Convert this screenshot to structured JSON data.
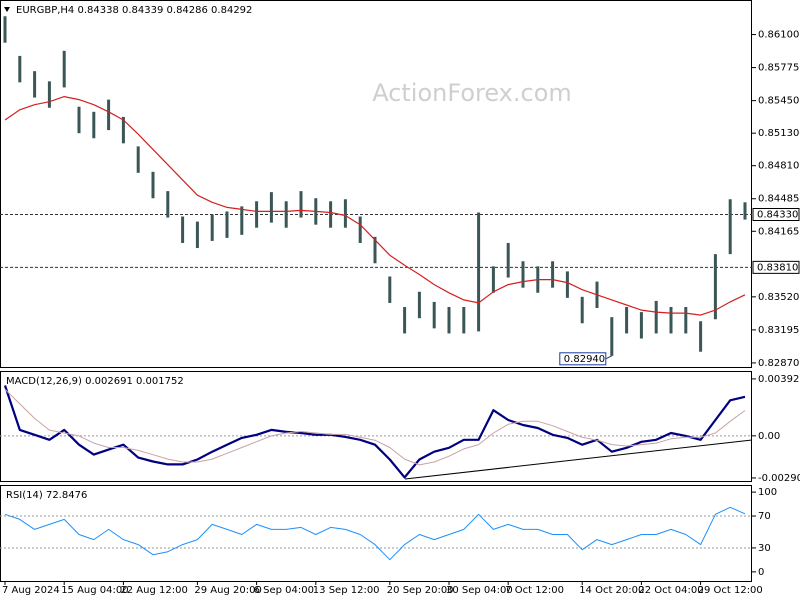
{
  "chart_data": [
    {
      "type": "range_bars",
      "title": "EURGBP,H4  0.84338 0.84339 0.84286 0.84292",
      "watermark": "ActionForex.com",
      "categories": [
        "7 Aug 2024",
        null,
        null,
        null,
        "15 Aug 04:00",
        null,
        null,
        null,
        "22 Aug 12:00",
        null,
        null,
        null,
        null,
        "29 Aug 20:00",
        null,
        null,
        null,
        "6 Sep 04:00",
        null,
        null,
        null,
        "13 Sep 12:00",
        null,
        null,
        null,
        null,
        "20 Sep 20:00",
        null,
        null,
        null,
        "30 Sep 04:00",
        null,
        null,
        null,
        "7 Oct 12:00",
        null,
        null,
        null,
        null,
        "14 Oct 20:00",
        null,
        null,
        null,
        "22 Oct 04:00",
        null,
        null,
        null,
        "29 Oct 12:00",
        null,
        null,
        null
      ],
      "high": [
        0.8628,
        0.8589,
        0.8574,
        0.8564,
        0.8594,
        0.8539,
        0.8534,
        0.8546,
        0.8529,
        0.85,
        0.8475,
        0.8456,
        0.8431,
        0.8426,
        0.8433,
        0.8436,
        0.8441,
        0.8446,
        0.8455,
        0.8446,
        0.8456,
        0.8449,
        0.8446,
        0.8448,
        0.8431,
        0.8411,
        0.8372,
        0.8342,
        0.8357,
        0.8347,
        0.8342,
        0.8342,
        0.8435,
        0.8382,
        0.8405,
        0.8387,
        0.8382,
        0.8387,
        0.8377,
        0.8352,
        0.8367,
        0.8332,
        0.8342,
        0.8337,
        0.8348,
        0.8342,
        0.8342,
        0.8328,
        0.8394,
        0.8448,
        0.8445
      ],
      "low": [
        0.8602,
        0.8563,
        0.8548,
        0.8538,
        0.8558,
        0.8513,
        0.8508,
        0.8516,
        0.8503,
        0.8474,
        0.8449,
        0.843,
        0.8405,
        0.84,
        0.8407,
        0.841,
        0.8413,
        0.842,
        0.8425,
        0.842,
        0.843,
        0.8423,
        0.842,
        0.842,
        0.8405,
        0.8385,
        0.8346,
        0.8316,
        0.8331,
        0.8321,
        0.8316,
        0.8316,
        0.8318,
        0.8356,
        0.8371,
        0.8361,
        0.8356,
        0.8361,
        0.8351,
        0.8326,
        0.8341,
        0.8294,
        0.8316,
        0.8311,
        0.8316,
        0.8316,
        0.8316,
        0.8298,
        0.833,
        0.8394,
        0.8428
      ],
      "color": "#3b5656",
      "lines": [
        {
          "color": "#d42020",
          "width": 1.2,
          "values": [
            0.8526,
            0.8536,
            0.8541,
            0.8544,
            0.8549,
            0.8546,
            0.8541,
            0.8534,
            0.8526,
            0.8512,
            0.8497,
            0.8482,
            0.8467,
            0.8452,
            0.8445,
            0.844,
            0.8438,
            0.8436,
            0.8436,
            0.8436,
            0.8437,
            0.8436,
            0.8435,
            0.8432,
            0.8423,
            0.8408,
            0.8393,
            0.8383,
            0.8374,
            0.8364,
            0.8356,
            0.8349,
            0.8346,
            0.8357,
            0.8364,
            0.8367,
            0.8369,
            0.8369,
            0.8366,
            0.8359,
            0.8354,
            0.8349,
            0.8344,
            0.8339,
            0.8337,
            0.8336,
            0.8336,
            0.8334,
            0.8339,
            0.8347,
            0.8354
          ]
        }
      ],
      "ylim": [
        0.8282,
        0.8644
      ],
      "yticks": [
        {
          "value": 0.861,
          "label": "0.86100"
        },
        {
          "value": 0.85775,
          "label": "0.85775"
        },
        {
          "value": 0.8545,
          "label": "0.85450"
        },
        {
          "value": 0.8513,
          "label": "0.85130"
        },
        {
          "value": 0.8481,
          "label": "0.84810"
        },
        {
          "value": 0.84485,
          "label": "0.84485"
        },
        {
          "value": 0.84165,
          "label": "0.84165"
        },
        {
          "value": 0.8352,
          "label": "0.83520"
        },
        {
          "value": 0.83195,
          "label": "0.83195"
        },
        {
          "value": 0.8287,
          "label": "0.82870"
        }
      ],
      "levels": [
        {
          "value": 0.8433,
          "label": "0.84330"
        },
        {
          "value": 0.8381,
          "label": "0.83810"
        }
      ],
      "annotations": [
        {
          "value": 0.8294,
          "label": "0.82940"
        }
      ]
    },
    {
      "type": "line",
      "title": "MACD(12,26,9) 0.002691 0.001752",
      "lines": [
        {
          "color": "#000080",
          "width": 2.2,
          "values": [
            0.00347,
            0.00041,
            7e-05,
            -0.00027,
            0.00041,
            -0.00061,
            -0.00129,
            -0.00095,
            -0.00061,
            -0.0015,
            -0.00177,
            -0.00197,
            -0.00197,
            -0.00163,
            -0.00109,
            -0.00061,
            -0.00014,
            7e-05,
            0.00041,
            0.00027,
            0.0002,
            7e-05,
            7e-05,
            -7e-05,
            -0.00027,
            -0.00061,
            -0.00163,
            -0.00286,
            -0.00163,
            -0.00109,
            -0.00082,
            -0.00027,
            -0.00027,
            0.00177,
            0.00109,
            0.00075,
            0.00054,
            7e-05,
            -0.00014,
            -0.00061,
            -0.00027,
            -0.00109,
            -0.00082,
            -0.00041,
            -0.00027,
            0.0002,
            0,
            -0.00027,
            0.00109,
            0.00245,
            0.00269
          ]
        },
        {
          "color": "#c9a3a3",
          "width": 1,
          "values": [
            0.0032,
            0.0022,
            0.0012,
            0.0004,
            0.0002,
            0,
            -0.0005,
            -0.0008,
            -0.0008,
            -0.001,
            -0.0013,
            -0.0016,
            -0.0018,
            -0.0018,
            -0.0016,
            -0.0012,
            -0.0008,
            -0.0004,
            0,
            0.0002,
            0.0003,
            0.0002,
            0.0001,
            0.0001,
            -0.0001,
            -0.0003,
            -0.0008,
            -0.0016,
            -0.002,
            -0.0018,
            -0.0014,
            -0.0009,
            -0.0006,
            0.0002,
            0.0008,
            0.001,
            0.001,
            0.0007,
            0.0003,
            -0.0001,
            -0.0003,
            -0.0006,
            -0.0007,
            -0.0006,
            -0.0005,
            -0.0002,
            -0.0001,
            -0.0001,
            0.0002,
            0.001,
            0.00175
          ]
        }
      ],
      "ylim": [
        -0.00318,
        0.00447
      ],
      "yticks": [
        {
          "value": 0.003925,
          "label": "0.003925"
        },
        {
          "value": 0,
          "label": "0.00"
        },
        {
          "value": -0.002901,
          "label": "-0.002901"
        }
      ],
      "levels": [
        0
      ]
    },
    {
      "type": "line",
      "title": "RSI(14) 72.8476",
      "lines": [
        {
          "color": "#1e90ff",
          "width": 1,
          "values": [
            72.2,
            65.8,
            53.2,
            59.5,
            65.8,
            46.8,
            40.5,
            53.2,
            40.5,
            34.2,
            21.5,
            25.3,
            34.2,
            40.5,
            59.5,
            53.2,
            46.8,
            59.5,
            53.2,
            53.2,
            55.7,
            46.8,
            55.7,
            53.2,
            46.8,
            34.2,
            15.2,
            34.2,
            46.8,
            40.5,
            46.8,
            53.2,
            72.2,
            53.2,
            59.5,
            53.2,
            53.2,
            46.8,
            46.8,
            27.8,
            40.5,
            34.2,
            40.5,
            46.8,
            46.8,
            53.2,
            46.8,
            34.2,
            72.2,
            81.0,
            72.8
          ]
        }
      ],
      "ylim": [
        -12.7,
        108.9
      ],
      "yticks": [
        100,
        70,
        30,
        0
      ],
      "levels": [
        70,
        30
      ]
    }
  ]
}
